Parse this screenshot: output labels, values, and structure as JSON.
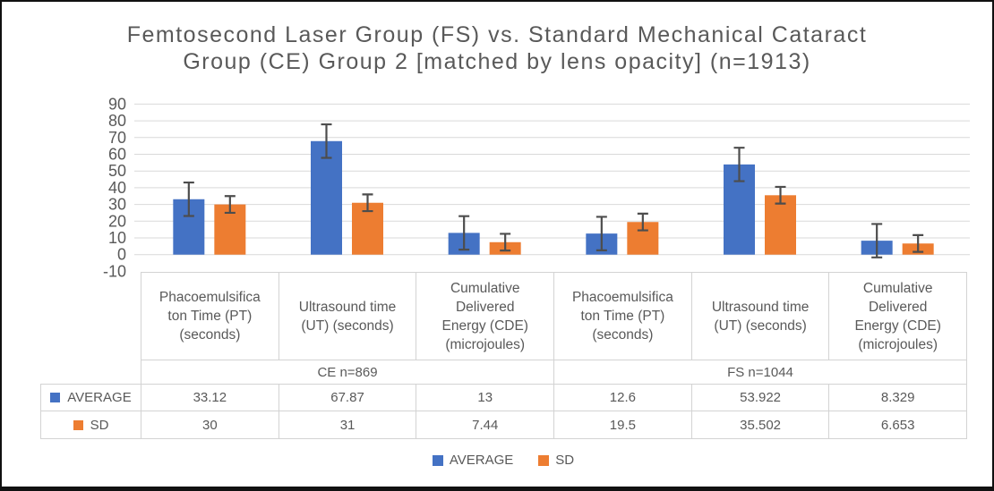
{
  "title": {
    "lines": [
      "Femtosecond Laser Group (FS) vs. Standard Mechanical Cataract",
      "Group (CE) Group 2 [matched by lens opacity] (n=1913)"
    ]
  },
  "chart_data": {
    "type": "bar",
    "title": "Femtosecond Laser Group (FS) vs. Standard Mechanical Cataract Group (CE) Group 2 [matched by lens opacity] (n=1913)",
    "categories": [
      "Phacoemulsificaton Time (PT) (seconds)",
      "Ultrasound time (UT) (seconds)",
      "Cumulative Delivered Energy (CDE) (microjoules)",
      "Phacoemulsificaton Time (PT) (seconds)",
      "Ultrasound time (UT) (seconds)",
      "Cumulative Delivered Energy (CDE) (microjoules)"
    ],
    "groups": [
      {
        "label": "CE n=869",
        "span": 3
      },
      {
        "label": "FS n=1044",
        "span": 3
      }
    ],
    "series": [
      {
        "name": "AVERAGE",
        "color": "#4472C4",
        "values": [
          33.12,
          67.87,
          13,
          12.6,
          53.922,
          8.329
        ],
        "error_bar": 10
      },
      {
        "name": "SD",
        "color": "#ED7D31",
        "values": [
          30,
          31,
          7.44,
          19.5,
          35.502,
          6.653
        ],
        "error_bar": 5
      }
    ],
    "xlabel": "",
    "ylabel": "",
    "ylim": [
      -10,
      90
    ],
    "ytick_step": 10,
    "grid": true,
    "legend_position": "bottom",
    "gridline_color": "#D9D9D9",
    "error_bar_color": "#4D4D4D",
    "axis_text_color": "#595959"
  },
  "table": {
    "column_headers": [
      "Phacoemulsifica\nton Time (PT)\n(seconds)",
      "Ultrasound time\n(UT) (seconds)",
      "Cumulative\nDelivered\nEnergy (CDE)\n(microjoules)",
      "Phacoemulsifica\nton Time (PT)\n(seconds)",
      "Ultrasound time\n(UT) (seconds)",
      "Cumulative\nDelivered\nEnergy (CDE)\n(microjoules)"
    ],
    "groups": [
      "CE n=869",
      "FS n=1044"
    ]
  }
}
